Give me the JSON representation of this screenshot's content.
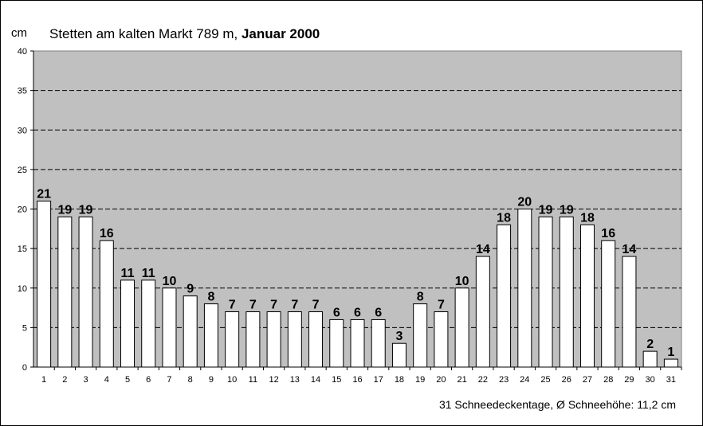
{
  "chart_data": {
    "type": "bar",
    "title_prefix": "Stetten am kalten Markt 789 m, ",
    "title_bold": "Januar 2000",
    "ylabel": "cm",
    "xlabel": "",
    "ylim": [
      0,
      40
    ],
    "yticks": [
      0,
      5,
      10,
      15,
      20,
      25,
      30,
      35,
      40
    ],
    "grid": true,
    "categories": [
      "1",
      "2",
      "3",
      "4",
      "5",
      "6",
      "7",
      "8",
      "9",
      "10",
      "11",
      "12",
      "13",
      "14",
      "15",
      "16",
      "17",
      "18",
      "19",
      "20",
      "21",
      "22",
      "23",
      "24",
      "25",
      "26",
      "27",
      "28",
      "29",
      "30",
      "31"
    ],
    "values": [
      21,
      19,
      19,
      16,
      11,
      11,
      10,
      9,
      8,
      7,
      7,
      7,
      7,
      7,
      6,
      6,
      6,
      3,
      8,
      7,
      10,
      14,
      18,
      20,
      19,
      19,
      18,
      16,
      14,
      2,
      1
    ],
    "footer": "31 Schneedeckentage,  Ø Schneehöhe:  11,2 cm",
    "colors": {
      "plot_bg": "#c0c0c0",
      "bar": "#ffffff",
      "grid": "#000000"
    }
  }
}
